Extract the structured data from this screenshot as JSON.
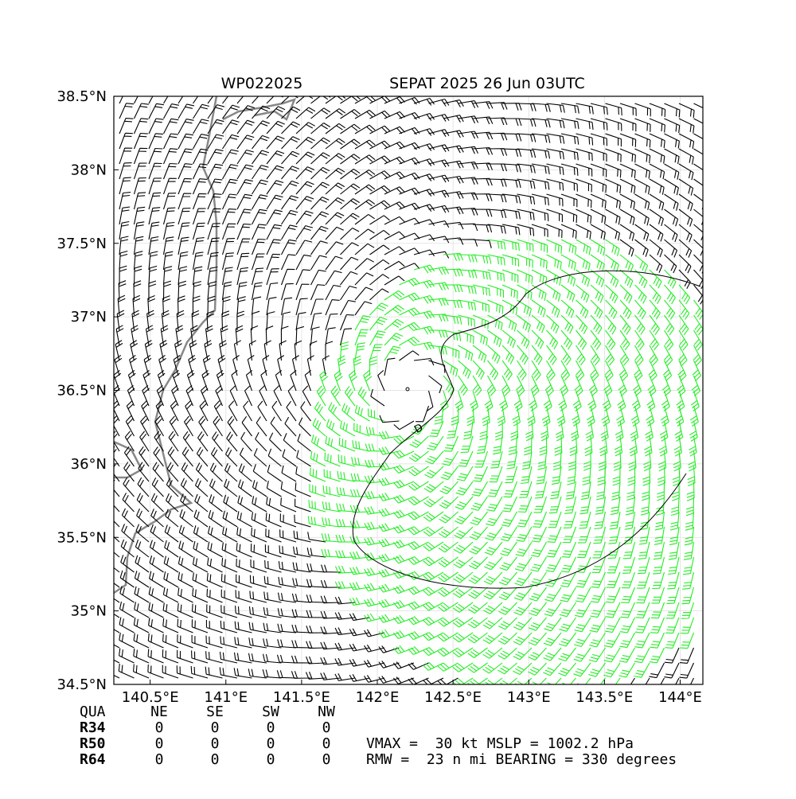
{
  "map": {
    "title_left": "WP022025",
    "title_right": "SEPAT 2025 26 Jun 03UTC",
    "xlim": [
      140.26,
      144.15
    ],
    "ylim": [
      34.5,
      38.5
    ],
    "xticks": [
      {
        "value": 140.5,
        "label": "140.5°E"
      },
      {
        "value": 141,
        "label": "141°E"
      },
      {
        "value": 141.5,
        "label": "141.5°E"
      },
      {
        "value": 142,
        "label": "142°E"
      },
      {
        "value": 142.5,
        "label": "142.5°E"
      },
      {
        "value": 143,
        "label": "143°E"
      },
      {
        "value": 143.5,
        "label": "143.5°E"
      },
      {
        "value": 144,
        "label": "144°E"
      }
    ],
    "yticks": [
      {
        "value": 34.5,
        "label": "34.5°N"
      },
      {
        "value": 35,
        "label": "35°N"
      },
      {
        "value": 35.5,
        "label": "35.5°N"
      },
      {
        "value": 36,
        "label": "36°N"
      },
      {
        "value": 36.5,
        "label": "36.5°N"
      },
      {
        "value": 37,
        "label": "37°N"
      },
      {
        "value": 37.5,
        "label": "37.5°N"
      },
      {
        "value": 38,
        "label": "38°N"
      },
      {
        "value": 38.5,
        "label": "38.5°N"
      }
    ],
    "storm_marker": "D"
  },
  "table": {
    "header": [
      "QUA",
      "NE",
      "SE",
      "SW",
      "NW"
    ],
    "rows": [
      [
        "R34",
        0,
        0,
        0,
        0
      ],
      [
        "R50",
        0,
        0,
        0,
        0
      ],
      [
        "R64",
        0,
        0,
        0,
        0
      ]
    ]
  },
  "info": [
    "VMAX =  30 kt MSLP = 1002.2 hPa",
    "RMW =  23 n mi BEARING = 330 degrees"
  ]
}
